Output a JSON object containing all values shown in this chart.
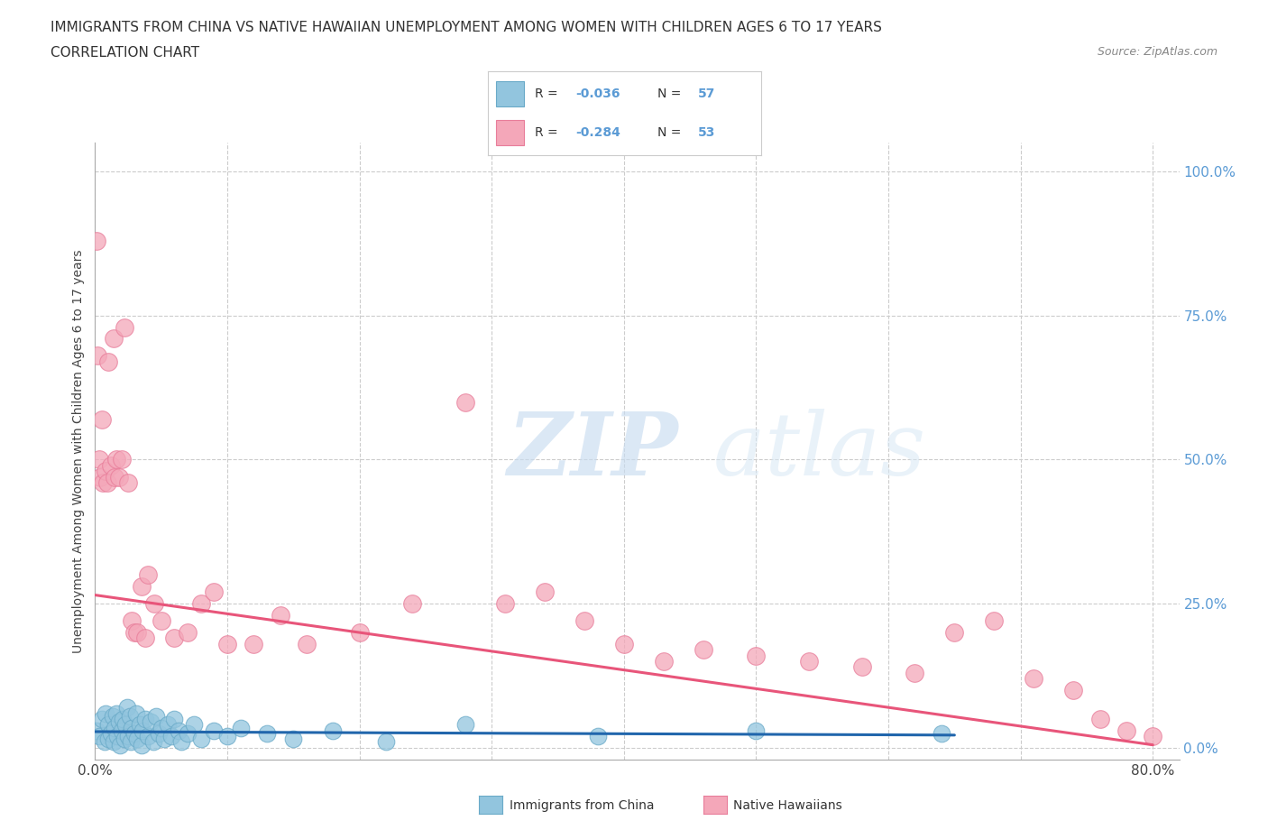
{
  "title_line1": "IMMIGRANTS FROM CHINA VS NATIVE HAWAIIAN UNEMPLOYMENT AMONG WOMEN WITH CHILDREN AGES 6 TO 17 YEARS",
  "title_line2": "CORRELATION CHART",
  "source_text": "Source: ZipAtlas.com",
  "ylabel": "Unemployment Among Women with Children Ages 6 to 17 years",
  "xlim": [
    0.0,
    0.82
  ],
  "ylim": [
    -0.02,
    1.05
  ],
  "y_ticks_right": [
    0.0,
    0.25,
    0.5,
    0.75,
    1.0
  ],
  "y_tick_labels_right": [
    "0.0%",
    "25.0%",
    "50.0%",
    "75.0%",
    "100.0%"
  ],
  "watermark_zip": "ZIP",
  "watermark_atlas": "atlas",
  "blue_color": "#92C5DE",
  "blue_edge": "#6AAAC8",
  "pink_color": "#F4A7B9",
  "pink_edge": "#E87D9A",
  "blue_line_color": "#2166AC",
  "pink_line_color": "#E8557A",
  "background_color": "#FFFFFF",
  "grid_color": "#CCCCCC",
  "right_label_color": "#5B9BD5",
  "china_x": [
    0.001,
    0.003,
    0.005,
    0.007,
    0.008,
    0.01,
    0.01,
    0.012,
    0.013,
    0.014,
    0.015,
    0.016,
    0.017,
    0.018,
    0.019,
    0.02,
    0.021,
    0.022,
    0.023,
    0.024,
    0.025,
    0.026,
    0.027,
    0.028,
    0.03,
    0.031,
    0.032,
    0.034,
    0.035,
    0.036,
    0.038,
    0.04,
    0.042,
    0.044,
    0.046,
    0.048,
    0.05,
    0.052,
    0.055,
    0.058,
    0.06,
    0.063,
    0.065,
    0.07,
    0.075,
    0.08,
    0.09,
    0.1,
    0.11,
    0.13,
    0.15,
    0.18,
    0.22,
    0.28,
    0.38,
    0.5,
    0.64
  ],
  "china_y": [
    0.03,
    0.02,
    0.05,
    0.01,
    0.06,
    0.015,
    0.04,
    0.025,
    0.055,
    0.01,
    0.035,
    0.06,
    0.02,
    0.045,
    0.005,
    0.03,
    0.05,
    0.015,
    0.04,
    0.07,
    0.02,
    0.055,
    0.01,
    0.035,
    0.025,
    0.06,
    0.015,
    0.04,
    0.005,
    0.03,
    0.05,
    0.02,
    0.045,
    0.01,
    0.055,
    0.025,
    0.035,
    0.015,
    0.04,
    0.02,
    0.05,
    0.03,
    0.01,
    0.025,
    0.04,
    0.015,
    0.03,
    0.02,
    0.035,
    0.025,
    0.015,
    0.03,
    0.01,
    0.04,
    0.02,
    0.03,
    0.025
  ],
  "hawaii_x": [
    0.001,
    0.002,
    0.003,
    0.004,
    0.005,
    0.006,
    0.008,
    0.009,
    0.01,
    0.012,
    0.014,
    0.015,
    0.016,
    0.018,
    0.02,
    0.022,
    0.025,
    0.028,
    0.03,
    0.032,
    0.035,
    0.038,
    0.04,
    0.045,
    0.05,
    0.06,
    0.07,
    0.08,
    0.09,
    0.1,
    0.12,
    0.14,
    0.16,
    0.2,
    0.24,
    0.28,
    0.31,
    0.34,
    0.37,
    0.4,
    0.43,
    0.46,
    0.5,
    0.54,
    0.58,
    0.62,
    0.65,
    0.68,
    0.71,
    0.74,
    0.76,
    0.78,
    0.8
  ],
  "hawaii_y": [
    0.88,
    0.68,
    0.5,
    0.47,
    0.57,
    0.46,
    0.48,
    0.46,
    0.67,
    0.49,
    0.71,
    0.47,
    0.5,
    0.47,
    0.5,
    0.73,
    0.46,
    0.22,
    0.2,
    0.2,
    0.28,
    0.19,
    0.3,
    0.25,
    0.22,
    0.19,
    0.2,
    0.25,
    0.27,
    0.18,
    0.18,
    0.23,
    0.18,
    0.2,
    0.25,
    0.6,
    0.25,
    0.27,
    0.22,
    0.18,
    0.15,
    0.17,
    0.16,
    0.15,
    0.14,
    0.13,
    0.2,
    0.22,
    0.12,
    0.1,
    0.05,
    0.03,
    0.02
  ],
  "blue_trend_x": [
    0.0,
    0.65
  ],
  "blue_trend_y": [
    0.028,
    0.022
  ],
  "pink_trend_x": [
    0.0,
    0.8
  ],
  "pink_trend_y": [
    0.265,
    0.005
  ]
}
